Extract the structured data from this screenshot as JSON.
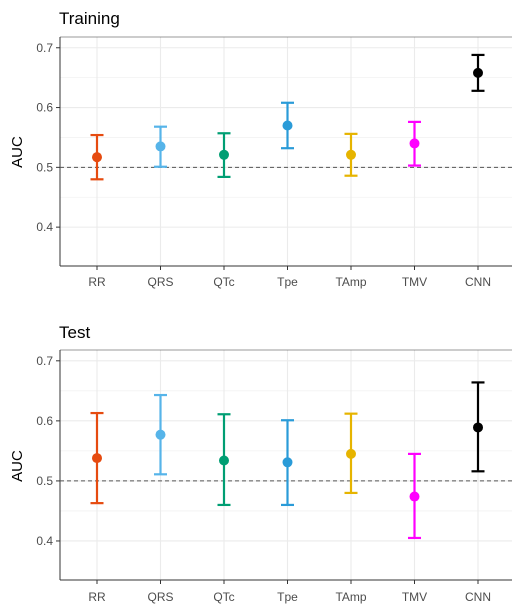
{
  "chart_data": [
    {
      "type": "scatter",
      "title": "Training",
      "xlabel": "",
      "ylabel": "AUC",
      "categories": [
        "RR",
        "QRS",
        "QTc",
        "Tpe",
        "TAmp",
        "TMV",
        "CNN"
      ],
      "values": [
        0.517,
        0.535,
        0.521,
        0.57,
        0.521,
        0.54,
        0.658
      ],
      "lower": [
        0.48,
        0.501,
        0.484,
        0.532,
        0.486,
        0.503,
        0.628
      ],
      "upper": [
        0.554,
        0.568,
        0.557,
        0.608,
        0.556,
        0.576,
        0.688
      ],
      "colors": [
        "#E64B10",
        "#56B4E9",
        "#009E73",
        "#2A9BD8",
        "#E6B400",
        "#FF00FF",
        "#000000"
      ],
      "reference_line": 0.5,
      "ylim": [
        0.335,
        0.718
      ],
      "yticks": [
        "0.4",
        "0.5",
        "0.6",
        "0.7"
      ],
      "grid": true
    },
    {
      "type": "scatter",
      "title": "Test",
      "xlabel": "",
      "ylabel": "AUC",
      "categories": [
        "RR",
        "QRS",
        "QTc",
        "Tpe",
        "TAmp",
        "TMV",
        "CNN"
      ],
      "values": [
        0.538,
        0.577,
        0.534,
        0.531,
        0.545,
        0.474,
        0.589
      ],
      "lower": [
        0.463,
        0.511,
        0.46,
        0.46,
        0.48,
        0.405,
        0.516
      ],
      "upper": [
        0.613,
        0.643,
        0.611,
        0.601,
        0.612,
        0.545,
        0.664
      ],
      "colors": [
        "#E64B10",
        "#56B4E9",
        "#009E73",
        "#2A9BD8",
        "#E6B400",
        "#FF00FF",
        "#000000"
      ],
      "reference_line": 0.5,
      "ylim": [
        0.335,
        0.718
      ],
      "yticks": [
        "0.4",
        "0.5",
        "0.6",
        "0.7"
      ],
      "grid": true
    }
  ]
}
